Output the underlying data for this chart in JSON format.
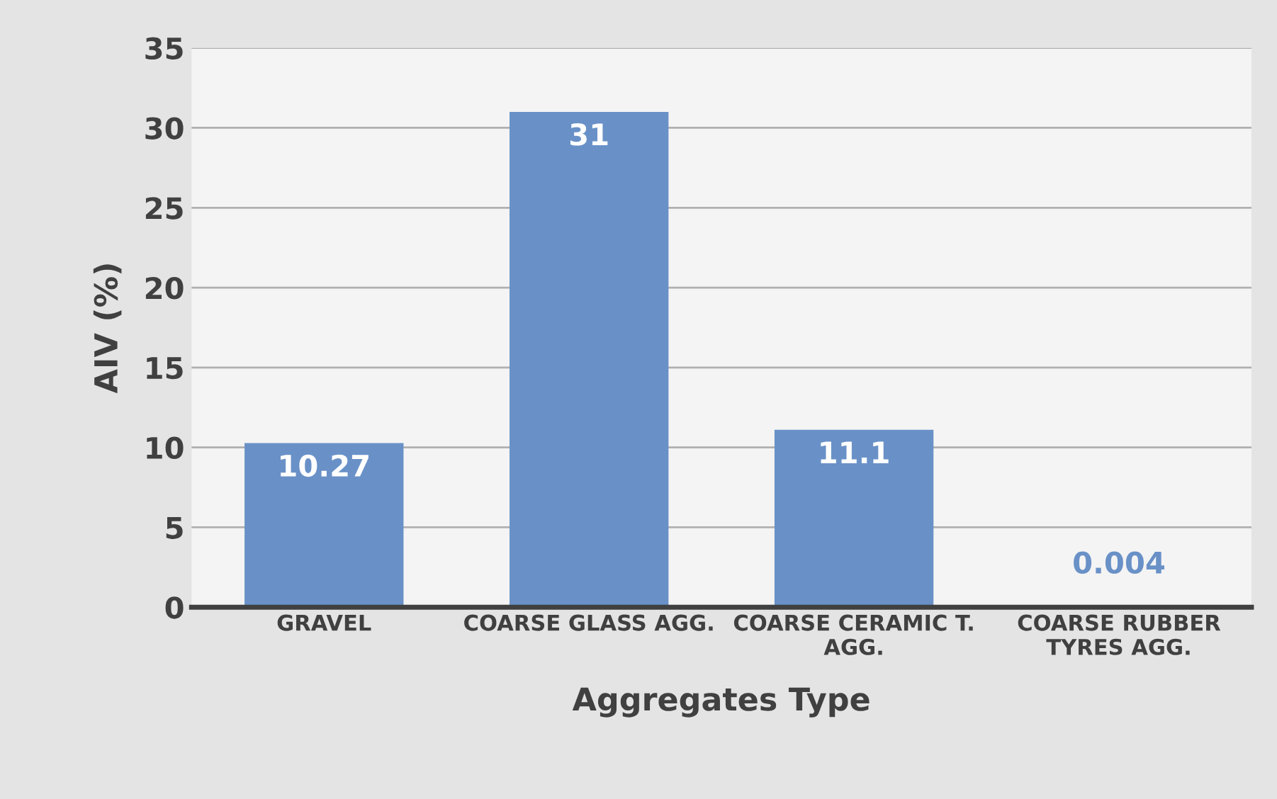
{
  "chart_data": {
    "type": "bar",
    "xlabel": "Aggregates Type",
    "ylabel": "AIV (%)",
    "categories": [
      "GRAVEL",
      "COARSE GLASS AGG.",
      "COARSE CERAMIC T.\nAGG.",
      "COARSE RUBBER\nTYRES AGG."
    ],
    "values": [
      10.27,
      31,
      11.1,
      0.004
    ],
    "color": "#6991c7",
    "data_labels": true,
    "ylim": [
      0,
      35
    ],
    "yticks": [
      0,
      5,
      10,
      15,
      20,
      25,
      30,
      35
    ],
    "grid": "y"
  }
}
